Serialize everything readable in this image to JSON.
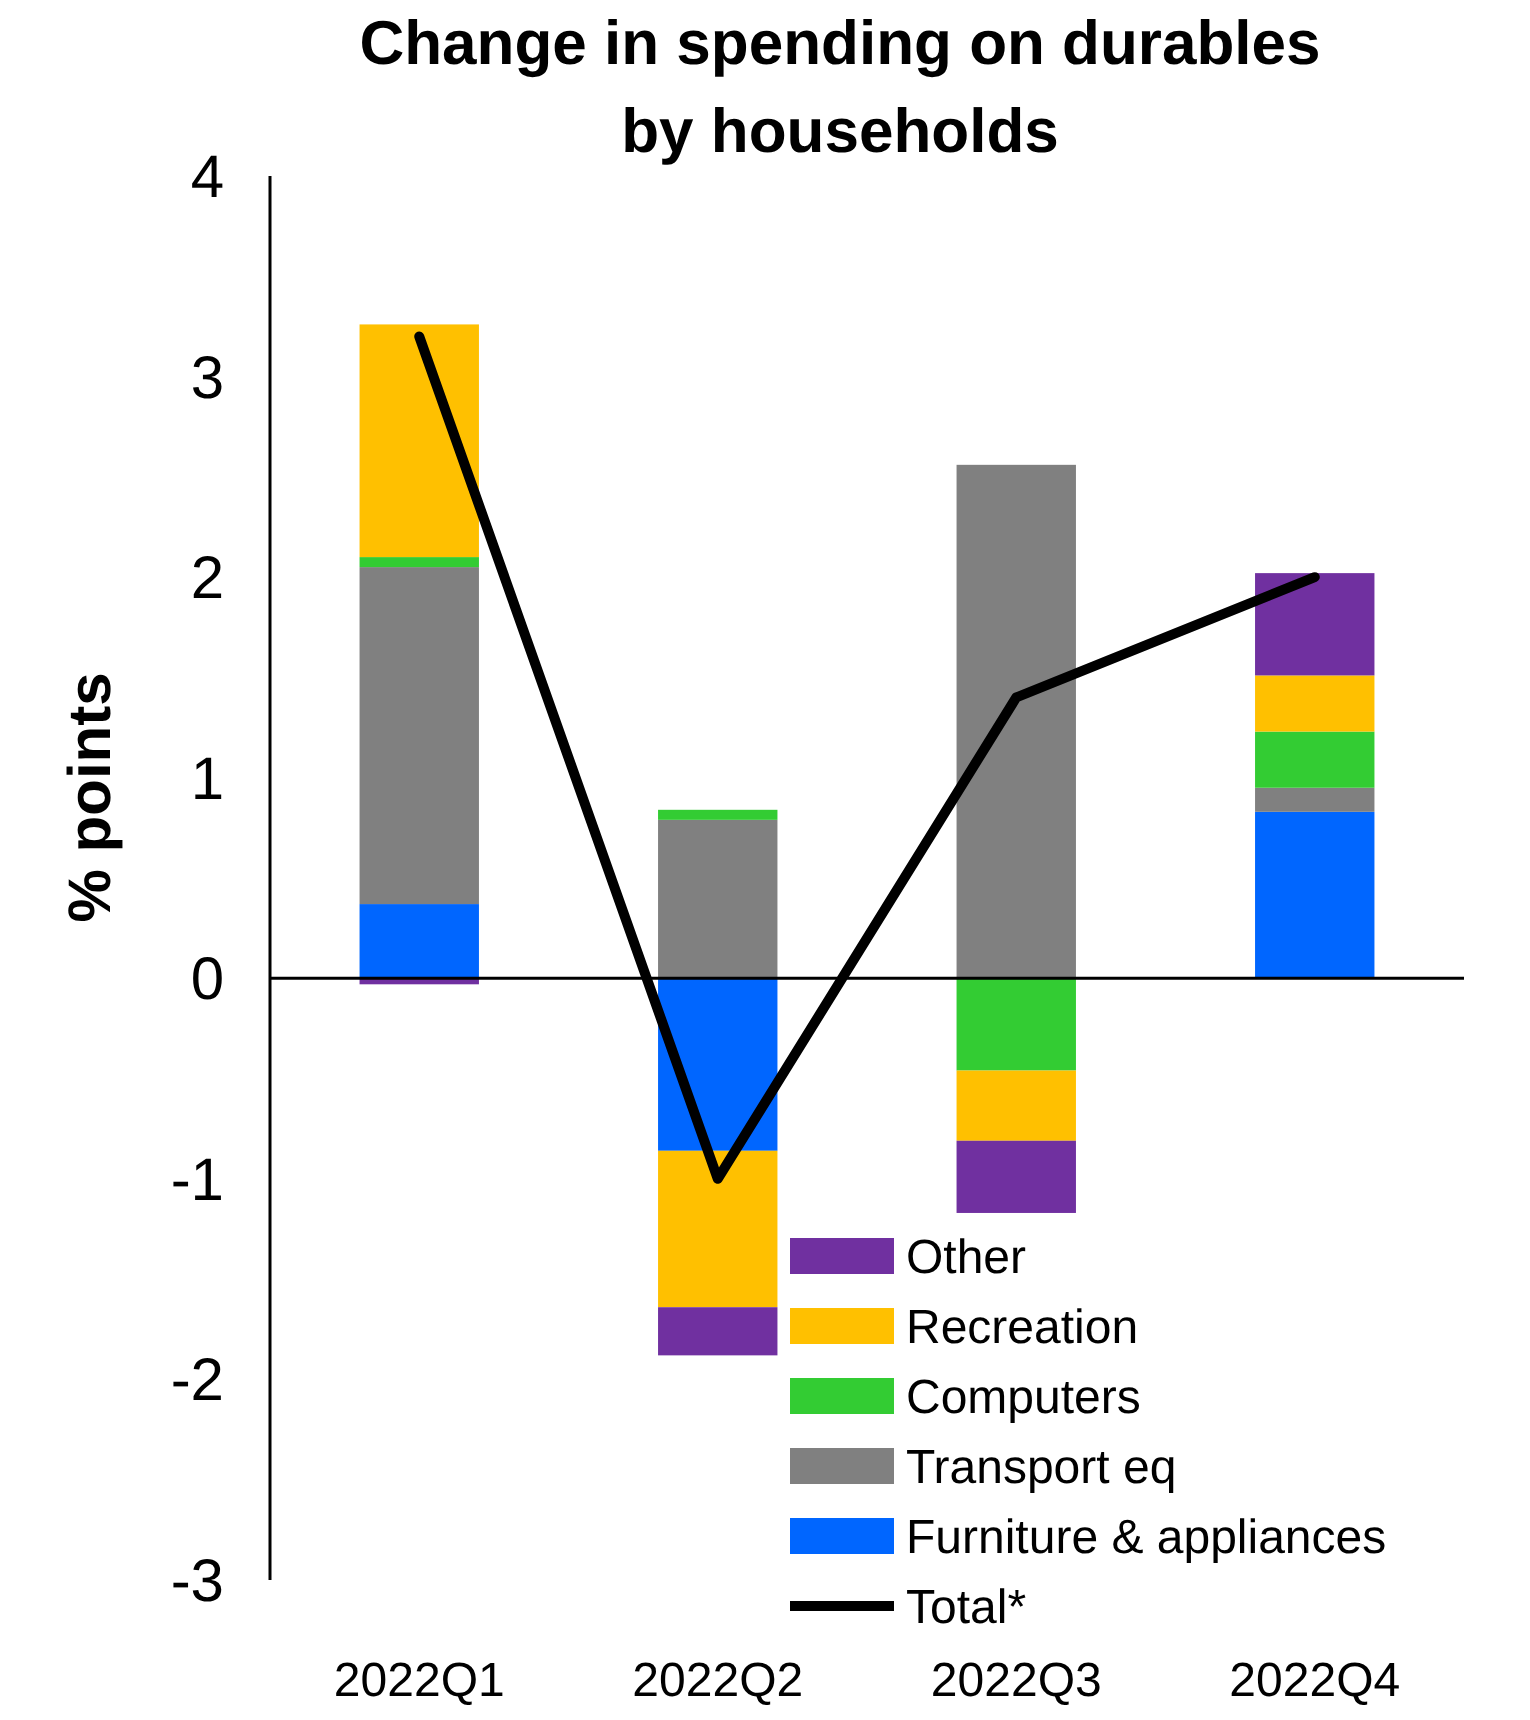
{
  "chart_data": {
    "type": "bar",
    "stacked": true,
    "title": "Change in spending on durables by households",
    "ylabel": "% points",
    "categories": [
      "2022Q1",
      "2022Q2",
      "2022Q3",
      "2022Q4"
    ],
    "ylim": [
      -3,
      4
    ],
    "yticks": [
      -3,
      -2,
      -1,
      0,
      1,
      2,
      3,
      4
    ],
    "legend": "bottom right",
    "series": [
      {
        "name": "Furniture & appliances",
        "color": "#0066ff",
        "values": [
          0.37,
          -0.86,
          0,
          0.83
        ]
      },
      {
        "name": "Transport eq",
        "color": "#808080",
        "values": [
          1.68,
          0.79,
          2.56,
          0.12
        ]
      },
      {
        "name": "Computers",
        "color": "#33cc33",
        "values": [
          0.05,
          0.05,
          -0.46,
          0.28
        ]
      },
      {
        "name": "Recreation",
        "color": "#ffc000",
        "values": [
          1.16,
          -0.78,
          -0.35,
          0.28
        ]
      },
      {
        "name": "Other",
        "color": "#7030a0",
        "values": [
          -0.03,
          -0.24,
          -0.36,
          0.51
        ]
      },
      {
        "name": "Total*",
        "type": "line",
        "color": "#000000",
        "values": [
          3.2,
          -1.0,
          1.4,
          2.0
        ]
      }
    ]
  }
}
